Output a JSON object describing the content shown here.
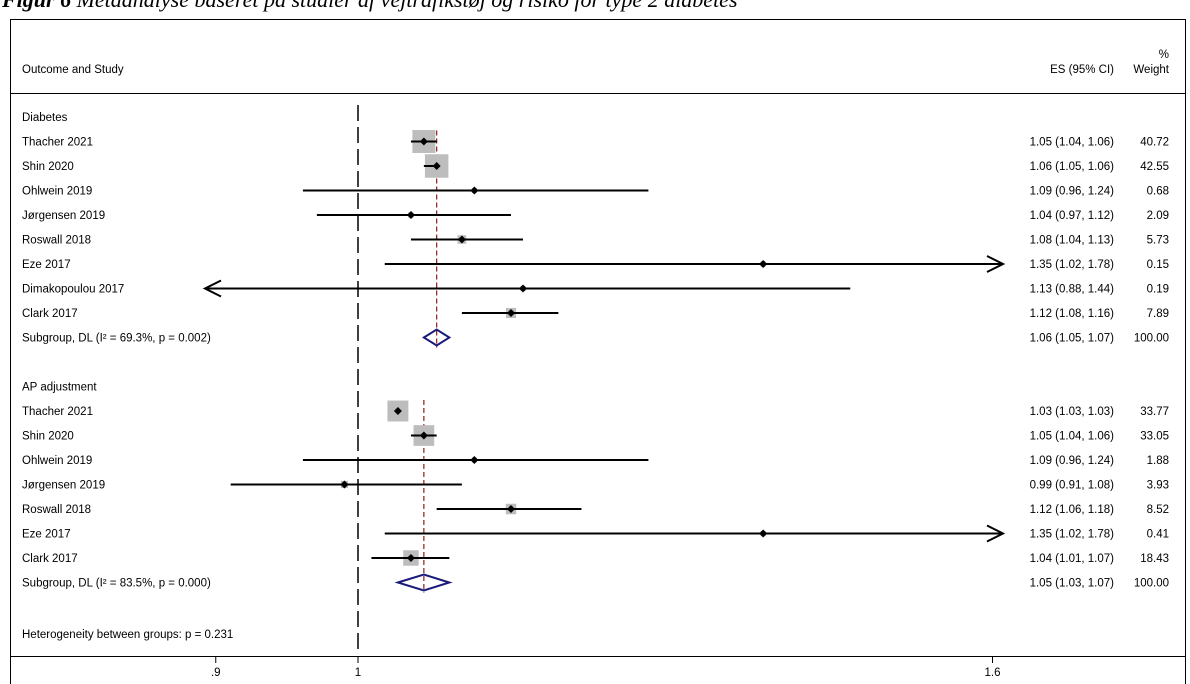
{
  "caption": {
    "label": "Figur 6",
    "text": "Metaanalyse baseret på studier af vejtrafikstøj og risiko for type 2 diabetes"
  },
  "header": {
    "study_col": "Outcome and Study",
    "es_col": "ES (95% CI)",
    "weight_symbol": "%",
    "weight_col": "Weight"
  },
  "colors": {
    "ci_line": "#000000",
    "weight_box": "#bdbdbd",
    "pooled_diamond": "#1a1a7a",
    "pooled_line": "#8b1a1a",
    "null_line": "#000000"
  },
  "footer": {
    "heterogeneity": "Heterogeneity between groups: p = 0.231"
  },
  "chart_data": {
    "type": "forest",
    "x_scale": "log",
    "null_value": 1,
    "xaxis_ticks": [
      ".9",
      "1",
      "1.6"
    ],
    "groups": [
      {
        "name": "Diabetes",
        "subgroup": {
          "label": "Subgroup, DL (I² = 69.3%, p = 0.002)",
          "es": 1.06,
          "lo": 1.05,
          "hi": 1.07,
          "es_text": "1.06 (1.05, 1.07)",
          "weight": "100.00"
        },
        "studies": [
          {
            "study": "Thacher 2021",
            "es": 1.05,
            "lo": 1.04,
            "hi": 1.06,
            "es_text": "1.05 (1.04, 1.06)",
            "weight": "40.72"
          },
          {
            "study": "Shin 2020",
            "es": 1.06,
            "lo": 1.05,
            "hi": 1.06,
            "es_text": "1.06 (1.05, 1.06)",
            "weight": "42.55"
          },
          {
            "study": "Ohlwein 2019",
            "es": 1.09,
            "lo": 0.96,
            "hi": 1.24,
            "es_text": "1.09 (0.96, 1.24)",
            "weight": "0.68"
          },
          {
            "study": "Jørgensen 2019",
            "es": 1.04,
            "lo": 0.97,
            "hi": 1.12,
            "es_text": "1.04 (0.97, 1.12)",
            "weight": "2.09"
          },
          {
            "study": "Roswall 2018",
            "es": 1.08,
            "lo": 1.04,
            "hi": 1.13,
            "es_text": "1.08 (1.04, 1.13)",
            "weight": "5.73"
          },
          {
            "study": "Eze 2017",
            "es": 1.35,
            "lo": 1.02,
            "hi": 1.78,
            "es_text": "1.35 (1.02, 1.78)",
            "weight": "0.15"
          },
          {
            "study": "Dimakopoulou 2017",
            "es": 1.13,
            "lo": 0.88,
            "hi": 1.44,
            "es_text": "1.13 (0.88, 1.44)",
            "weight": "0.19"
          },
          {
            "study": "Clark 2017",
            "es": 1.12,
            "lo": 1.08,
            "hi": 1.16,
            "es_text": "1.12 (1.08, 1.16)",
            "weight": "7.89"
          }
        ]
      },
      {
        "name": "AP adjustment",
        "subgroup": {
          "label": "Subgroup, DL (I² = 83.5%, p = 0.000)",
          "es": 1.05,
          "lo": 1.03,
          "hi": 1.07,
          "es_text": "1.05 (1.03, 1.07)",
          "weight": "100.00"
        },
        "studies": [
          {
            "study": "Thacher 2021",
            "es": 1.03,
            "lo": 1.03,
            "hi": 1.03,
            "es_text": "1.03 (1.03, 1.03)",
            "weight": "33.77"
          },
          {
            "study": "Shin 2020",
            "es": 1.05,
            "lo": 1.04,
            "hi": 1.06,
            "es_text": "1.05 (1.04, 1.06)",
            "weight": "33.05"
          },
          {
            "study": "Ohlwein 2019",
            "es": 1.09,
            "lo": 0.96,
            "hi": 1.24,
            "es_text": "1.09 (0.96, 1.24)",
            "weight": "1.88"
          },
          {
            "study": "Jørgensen 2019",
            "es": 0.99,
            "lo": 0.91,
            "hi": 1.08,
            "es_text": "0.99 (0.91, 1.08)",
            "weight": "3.93"
          },
          {
            "study": "Roswall 2018",
            "es": 1.12,
            "lo": 1.06,
            "hi": 1.18,
            "es_text": "1.12 (1.06, 1.18)",
            "weight": "8.52"
          },
          {
            "study": "Eze 2017",
            "es": 1.35,
            "lo": 1.02,
            "hi": 1.78,
            "es_text": "1.35 (1.02, 1.78)",
            "weight": "0.41"
          },
          {
            "study": "Clark 2017",
            "es": 1.04,
            "lo": 1.01,
            "hi": 1.07,
            "es_text": "1.04 (1.01, 1.07)",
            "weight": "18.43"
          }
        ]
      }
    ]
  }
}
